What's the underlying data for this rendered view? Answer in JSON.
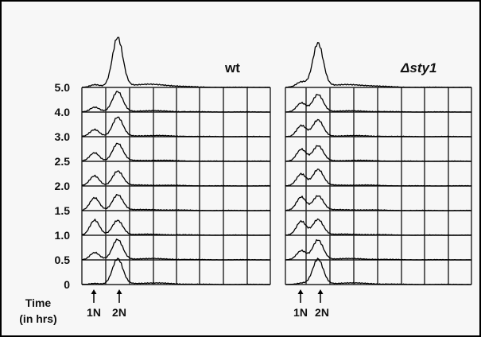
{
  "panels": [
    {
      "label": "wt"
    },
    {
      "label": "Δsty1"
    }
  ],
  "time_axis": {
    "title_line1": "Time",
    "title_line2": "(in hrs)"
  },
  "markers": [
    "1N",
    "2N"
  ],
  "chart_data": {
    "type": "area",
    "title": "",
    "xlabel": "",
    "ylabel": "Time (in hrs)",
    "categories": [
      "0",
      "0.5",
      "1.0",
      "1.5",
      "2.0",
      "2.5",
      "3.0",
      "4.0",
      "5.0"
    ],
    "panels": [
      "wt",
      "Δsty1"
    ],
    "markers": [
      "1N",
      "2N"
    ],
    "grid": true,
    "peaks": {
      "wt": [
        {
          "time": "0",
          "one_n": 0.05,
          "two_n": 1.0
        },
        {
          "time": "0.5",
          "one_n": 0.3,
          "two_n": 0.8
        },
        {
          "time": "1.0",
          "one_n": 0.6,
          "two_n": 0.6
        },
        {
          "time": "1.5",
          "one_n": 0.5,
          "two_n": 0.65
        },
        {
          "time": "2.0",
          "one_n": 0.4,
          "two_n": 0.6
        },
        {
          "time": "2.5",
          "one_n": 0.35,
          "two_n": 0.7
        },
        {
          "time": "3.0",
          "one_n": 0.3,
          "two_n": 0.75
        },
        {
          "time": "4.0",
          "one_n": 0.2,
          "two_n": 0.8
        },
        {
          "time": "5.0",
          "one_n": 0.1,
          "two_n": 2.0
        }
      ],
      "Δsty1": [
        {
          "time": "0",
          "one_n": 0.05,
          "two_n": 1.0
        },
        {
          "time": "0.5",
          "one_n": 0.35,
          "two_n": 0.8
        },
        {
          "time": "1.0",
          "one_n": 0.55,
          "two_n": 0.65
        },
        {
          "time": "1.5",
          "one_n": 0.55,
          "two_n": 0.6
        },
        {
          "time": "2.0",
          "one_n": 0.5,
          "two_n": 0.65
        },
        {
          "time": "2.5",
          "one_n": 0.5,
          "two_n": 0.6
        },
        {
          "time": "3.0",
          "one_n": 0.45,
          "two_n": 0.65
        },
        {
          "time": "4.0",
          "one_n": 0.35,
          "two_n": 0.7
        },
        {
          "time": "5.0",
          "one_n": 0.2,
          "two_n": 1.8
        }
      ]
    }
  }
}
